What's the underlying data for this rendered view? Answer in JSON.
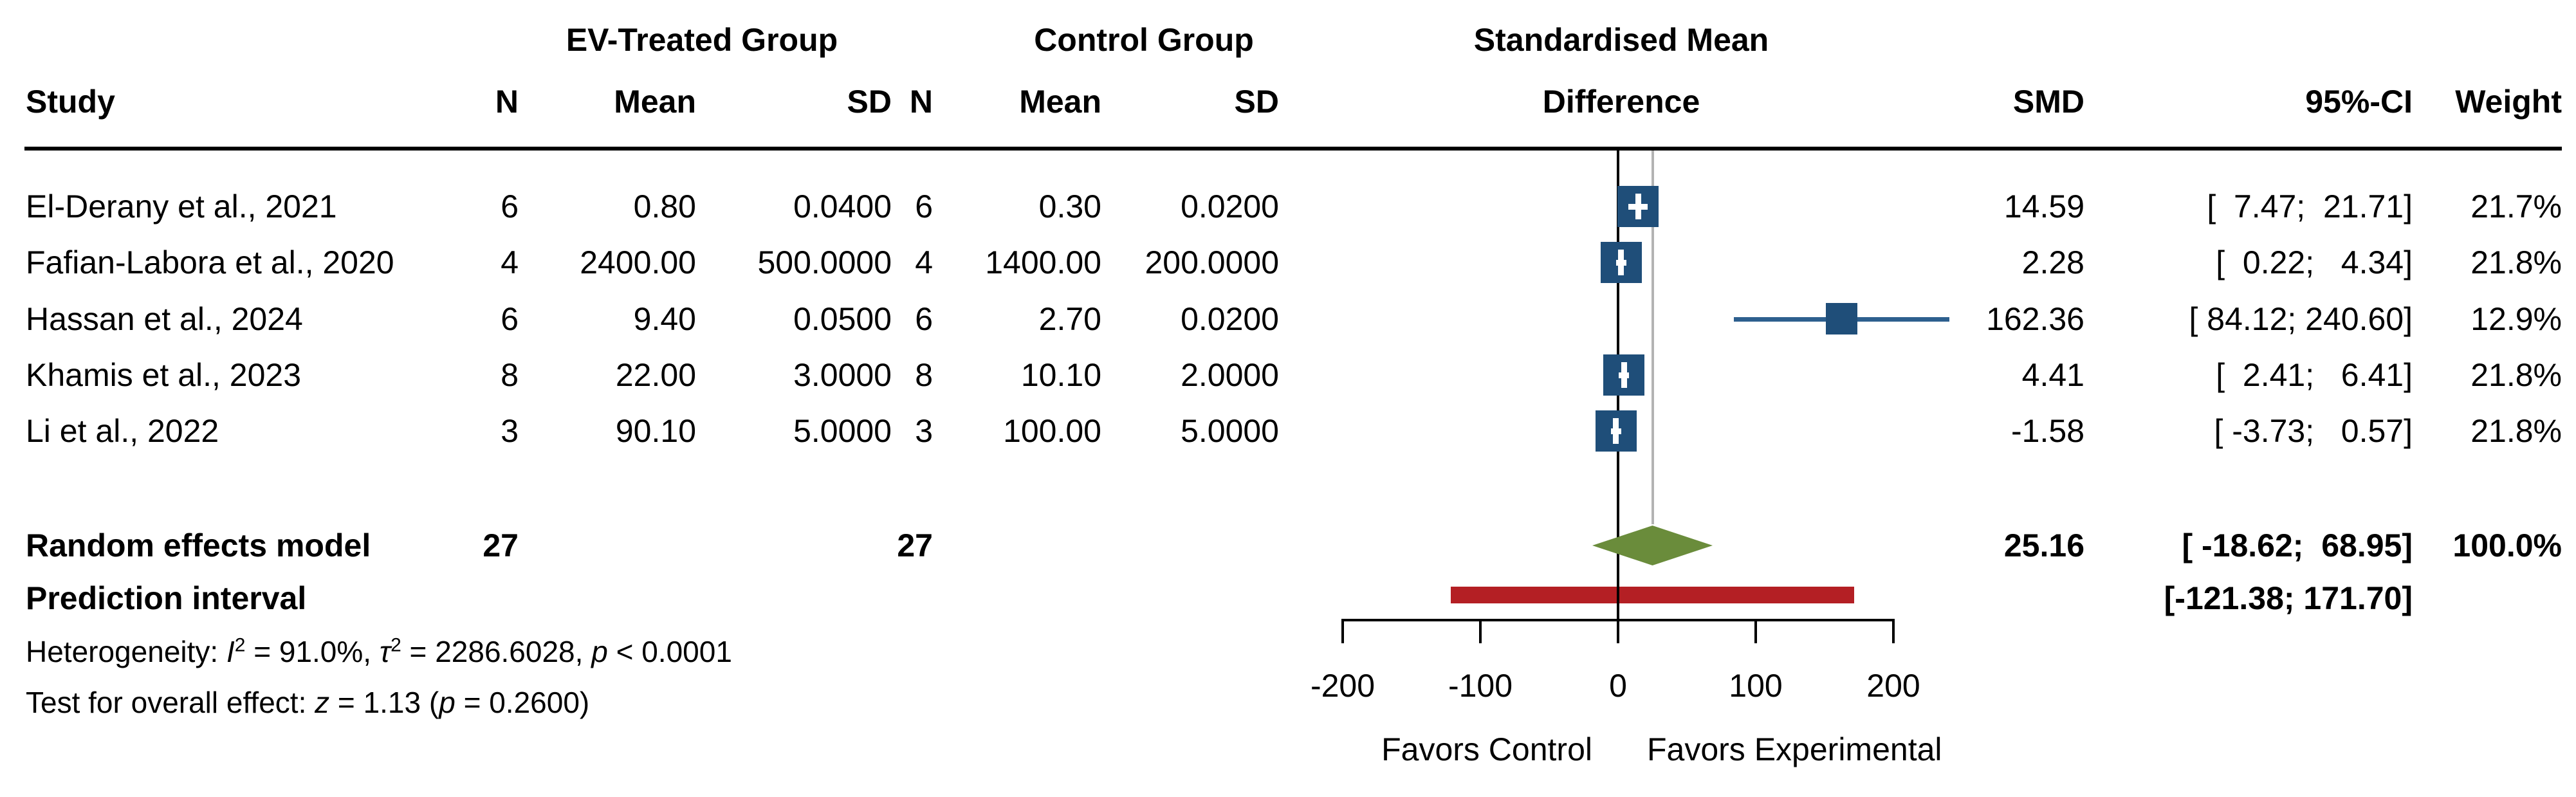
{
  "header": {
    "group_ev": "EV-Treated Group",
    "group_control": "Control Group",
    "effect_line1": "Standardised Mean",
    "effect_line2": "Difference",
    "col_study": "Study",
    "col_n": "N",
    "col_mean": "Mean",
    "col_sd": "SD",
    "col_smd": "SMD",
    "col_ci": "95%-CI",
    "col_weight": "Weight"
  },
  "chart_data": {
    "type": "forest",
    "axis": {
      "min": -200,
      "max": 200,
      "ticks": [
        "-200",
        "-100",
        "0",
        "100",
        "200"
      ],
      "tick_values": [
        -200,
        -100,
        0,
        100,
        200
      ],
      "zero_line": 0,
      "pooled_line": 25.16
    },
    "favors_left": "Favors Control",
    "favors_right": "Favors Experimental",
    "studies": [
      {
        "study": "El-Derany et al., 2021",
        "n1": "6",
        "mean1": "0.80",
        "sd1": "0.0400",
        "n2": "6",
        "mean2": "0.30",
        "sd2": "0.0200",
        "smd": 14.59,
        "smd_text": "14.59",
        "ci_low": 7.47,
        "ci_high": 21.71,
        "ci_text": "[  7.47;  21.71]",
        "weight": 21.7,
        "weight_text": "21.7%"
      },
      {
        "study": "Fafian-Labora et al., 2020",
        "n1": "4",
        "mean1": "2400.00",
        "sd1": "500.0000",
        "n2": "4",
        "mean2": "1400.00",
        "sd2": "200.0000",
        "smd": 2.28,
        "smd_text": "2.28",
        "ci_low": 0.22,
        "ci_high": 4.34,
        "ci_text": "[  0.22;   4.34]",
        "weight": 21.8,
        "weight_text": "21.8%"
      },
      {
        "study": "Hassan et al., 2024",
        "n1": "6",
        "mean1": "9.40",
        "sd1": "0.0500",
        "n2": "6",
        "mean2": "2.70",
        "sd2": "0.0200",
        "smd": 162.36,
        "smd_text": "162.36",
        "ci_low": 84.12,
        "ci_high": 240.6,
        "ci_text": "[ 84.12; 240.60]",
        "weight": 12.9,
        "weight_text": "12.9%"
      },
      {
        "study": "Khamis et al., 2023",
        "n1": "8",
        "mean1": "22.00",
        "sd1": "3.0000",
        "n2": "8",
        "mean2": "10.10",
        "sd2": "2.0000",
        "smd": 4.41,
        "smd_text": "4.41",
        "ci_low": 2.41,
        "ci_high": 6.41,
        "ci_text": "[  2.41;   6.41]",
        "weight": 21.8,
        "weight_text": "21.8%"
      },
      {
        "study": "Li et al., 2022",
        "n1": "3",
        "mean1": "90.10",
        "sd1": "5.0000",
        "n2": "3",
        "mean2": "100.00",
        "sd2": "5.0000",
        "smd": -1.58,
        "smd_text": "-1.58",
        "ci_low": -3.73,
        "ci_high": 0.57,
        "ci_text": "[ -3.73;   0.57]",
        "weight": 21.8,
        "weight_text": "21.8%"
      }
    ],
    "summary": {
      "label": "Random effects model",
      "n1": "27",
      "n2": "27",
      "smd": 25.16,
      "smd_text": "25.16",
      "ci_low": -18.62,
      "ci_high": 68.95,
      "ci_text": "[ -18.62;  68.95]",
      "weight_text": "100.0%"
    },
    "prediction": {
      "label": "Prediction interval",
      "low": -121.38,
      "high": 171.7,
      "ci_text": "[-121.38; 171.70]"
    }
  },
  "footer": {
    "heterogeneity": {
      "pre": "Heterogeneity: ",
      "i": "I",
      "sup1": "2",
      "mid1": " = 91.0%, ",
      "tau": "τ",
      "sup2": "2",
      "mid2": " = 2286.6028, ",
      "p": "p",
      "post": " < 0.0001"
    },
    "test": {
      "pre": "Test for overall effect: ",
      "z": "z",
      "mid1": " = 1.13 (",
      "p": "p",
      "post": " = 0.2600)"
    }
  },
  "colors": {
    "square": "#1F4E79",
    "ci_line": "#2D5F8E",
    "diamond": "#6A8C3B",
    "prediction_bar": "#B41F24",
    "pooled_line": "#B3B3B3",
    "axis": "#000000"
  }
}
